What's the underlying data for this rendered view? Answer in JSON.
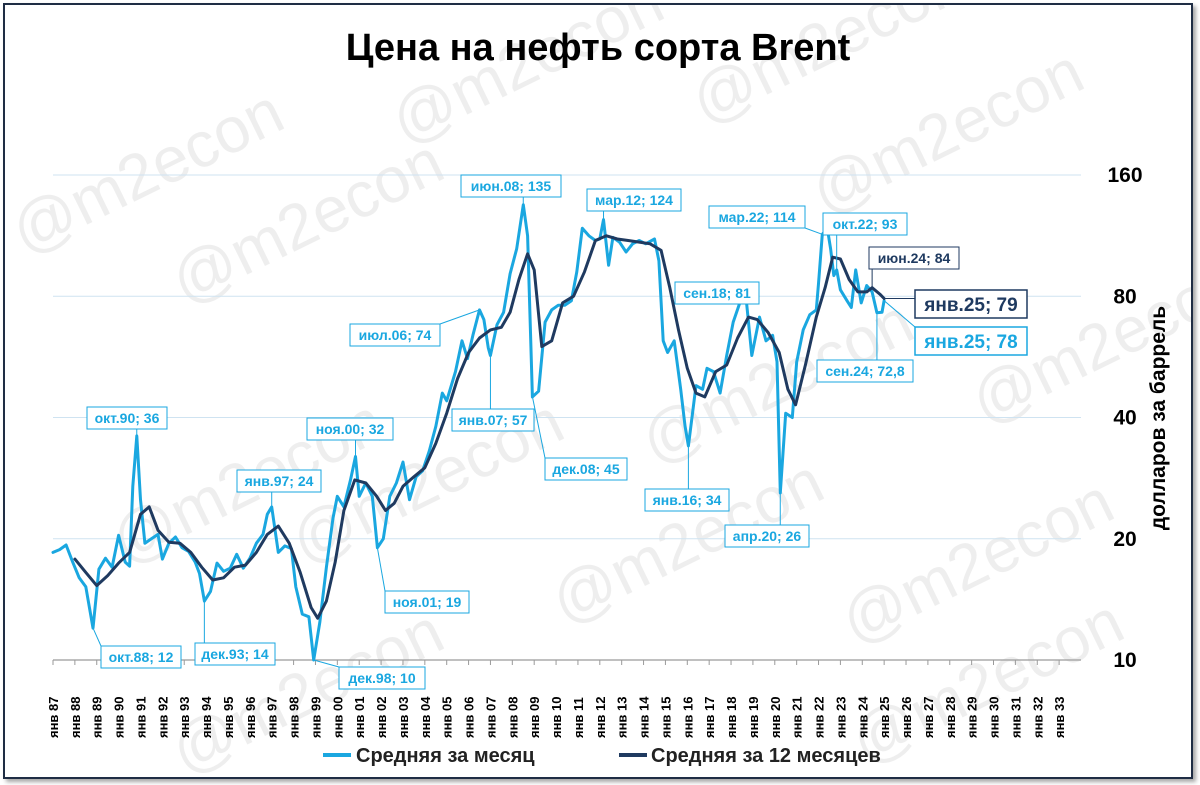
{
  "chart_data": {
    "type": "line",
    "title": "Цена на нефть сорта Brent",
    "ylabel": "долларов за баррель",
    "yscale": "log",
    "ylim": [
      10,
      160
    ],
    "yticks": [
      10,
      20,
      40,
      80,
      160
    ],
    "xlim": [
      1987,
      2034
    ],
    "xticks": [
      "янв 87",
      "янв 88",
      "янв 89",
      "янв 90",
      "янв 91",
      "янв 92",
      "янв 93",
      "янв 94",
      "янв 95",
      "янв 96",
      "янв 97",
      "янв 98",
      "янв 99",
      "янв 00",
      "янв 01",
      "янв 02",
      "янв 03",
      "янв 04",
      "янв 05",
      "янв 06",
      "янв 07",
      "янв 08",
      "янв 09",
      "янв 10",
      "янв 11",
      "янв 12",
      "янв 13",
      "янв 14",
      "янв 15",
      "янв 16",
      "янв 17",
      "янв 18",
      "янв 19",
      "янв 20",
      "янв 21",
      "янв 22",
      "янв 23",
      "янв 24",
      "янв 25",
      "янв 26",
      "янв 27",
      "янв 28",
      "янв 29",
      "янв 30",
      "янв 31",
      "янв 32",
      "янв 33"
    ],
    "legend_position": "bottom",
    "grid": "horizontal",
    "series": [
      {
        "name": "Средняя за месяц",
        "color": "#1aa7e0",
        "points": [
          [
            1987.0,
            18.5
          ],
          [
            1987.3,
            18.8
          ],
          [
            1987.6,
            19.3
          ],
          [
            1987.9,
            17.5
          ],
          [
            1988.2,
            16.0
          ],
          [
            1988.5,
            15.2
          ],
          [
            1988.83,
            12.0
          ],
          [
            1989.1,
            16.8
          ],
          [
            1989.4,
            17.9
          ],
          [
            1989.7,
            17.0
          ],
          [
            1990.0,
            20.4
          ],
          [
            1990.3,
            17.5
          ],
          [
            1990.5,
            17.1
          ],
          [
            1990.65,
            27.0
          ],
          [
            1990.83,
            36.0
          ],
          [
            1991.0,
            25.0
          ],
          [
            1991.2,
            19.5
          ],
          [
            1991.5,
            20.0
          ],
          [
            1991.8,
            20.5
          ],
          [
            1992.0,
            17.8
          ],
          [
            1992.3,
            19.5
          ],
          [
            1992.6,
            20.2
          ],
          [
            1992.9,
            19.0
          ],
          [
            1993.2,
            18.6
          ],
          [
            1993.5,
            17.5
          ],
          [
            1993.7,
            16.4
          ],
          [
            1993.92,
            14.0
          ],
          [
            1994.2,
            14.8
          ],
          [
            1994.5,
            17.4
          ],
          [
            1994.8,
            16.6
          ],
          [
            1995.1,
            16.9
          ],
          [
            1995.4,
            18.3
          ],
          [
            1995.7,
            16.9
          ],
          [
            1996.0,
            17.9
          ],
          [
            1996.3,
            19.5
          ],
          [
            1996.6,
            20.5
          ],
          [
            1996.8,
            23.0
          ],
          [
            1997.0,
            24.0
          ],
          [
            1997.3,
            18.5
          ],
          [
            1997.6,
            19.2
          ],
          [
            1997.9,
            18.9
          ],
          [
            1998.1,
            15.2
          ],
          [
            1998.4,
            13.0
          ],
          [
            1998.7,
            12.8
          ],
          [
            1998.92,
            10.0
          ],
          [
            1999.2,
            12.4
          ],
          [
            1999.5,
            17.0
          ],
          [
            1999.8,
            22.5
          ],
          [
            2000.0,
            25.5
          ],
          [
            2000.3,
            24.0
          ],
          [
            2000.6,
            28.0
          ],
          [
            2000.83,
            32.0
          ],
          [
            2001.0,
            25.5
          ],
          [
            2001.3,
            27.5
          ],
          [
            2001.6,
            25.5
          ],
          [
            2001.83,
            19.0
          ],
          [
            2002.1,
            20.0
          ],
          [
            2002.4,
            25.5
          ],
          [
            2002.7,
            27.5
          ],
          [
            2003.0,
            31.0
          ],
          [
            2003.3,
            25.0
          ],
          [
            2003.6,
            28.5
          ],
          [
            2003.9,
            29.5
          ],
          [
            2004.2,
            33.0
          ],
          [
            2004.5,
            38.0
          ],
          [
            2004.8,
            46.0
          ],
          [
            2005.0,
            44.0
          ],
          [
            2005.4,
            52.0
          ],
          [
            2005.7,
            62.0
          ],
          [
            2005.95,
            56.0
          ],
          [
            2006.2,
            64.0
          ],
          [
            2006.5,
            74.0
          ],
          [
            2006.7,
            70.0
          ],
          [
            2006.9,
            59.5
          ],
          [
            2007.0,
            57.0
          ],
          [
            2007.3,
            68.0
          ],
          [
            2007.6,
            73.0
          ],
          [
            2007.9,
            91.0
          ],
          [
            2008.2,
            105.0
          ],
          [
            2008.5,
            135.0
          ],
          [
            2008.7,
            113.0
          ],
          [
            2008.83,
            65.0
          ],
          [
            2008.92,
            45.0
          ],
          [
            2009.2,
            46.5
          ],
          [
            2009.5,
            69.0
          ],
          [
            2009.8,
            74.0
          ],
          [
            2010.1,
            76.0
          ],
          [
            2010.4,
            76.0
          ],
          [
            2010.7,
            78.0
          ],
          [
            2010.95,
            92.0
          ],
          [
            2011.2,
            118.0
          ],
          [
            2011.5,
            113.0
          ],
          [
            2011.8,
            110.0
          ],
          [
            2012.0,
            111.0
          ],
          [
            2012.17,
            124.0
          ],
          [
            2012.4,
            95.5
          ],
          [
            2012.6,
            112.0
          ],
          [
            2012.9,
            109.0
          ],
          [
            2013.2,
            103.0
          ],
          [
            2013.5,
            108.0
          ],
          [
            2013.8,
            110.0
          ],
          [
            2014.1,
            108.0
          ],
          [
            2014.5,
            111.0
          ],
          [
            2014.7,
            98.0
          ],
          [
            2014.9,
            62.0
          ],
          [
            2015.1,
            58.0
          ],
          [
            2015.4,
            62.0
          ],
          [
            2015.7,
            47.0
          ],
          [
            2015.9,
            38.0
          ],
          [
            2016.05,
            34.0
          ],
          [
            2016.4,
            48.0
          ],
          [
            2016.7,
            47.0
          ],
          [
            2016.9,
            53.0
          ],
          [
            2017.2,
            52.0
          ],
          [
            2017.5,
            46.0
          ],
          [
            2017.8,
            57.0
          ],
          [
            2018.1,
            69.0
          ],
          [
            2018.4,
            77.0
          ],
          [
            2018.67,
            81.0
          ],
          [
            2018.95,
            57.0
          ],
          [
            2019.3,
            71.0
          ],
          [
            2019.6,
            62.0
          ],
          [
            2019.9,
            64.0
          ],
          [
            2020.1,
            55.0
          ],
          [
            2020.25,
            26.0
          ],
          [
            2020.5,
            41.0
          ],
          [
            2020.8,
            40.0
          ],
          [
            2021.0,
            55.0
          ],
          [
            2021.3,
            66.0
          ],
          [
            2021.6,
            72.0
          ],
          [
            2021.9,
            74.0
          ],
          [
            2022.0,
            86.0
          ],
          [
            2022.17,
            114.0
          ],
          [
            2022.4,
            118.0
          ],
          [
            2022.55,
            105.0
          ],
          [
            2022.7,
            90.0
          ],
          [
            2022.83,
            93.0
          ],
          [
            2023.0,
            83.0
          ],
          [
            2023.3,
            78.0
          ],
          [
            2023.5,
            75.0
          ],
          [
            2023.7,
            93.0
          ],
          [
            2023.95,
            77.0
          ],
          [
            2024.2,
            85.0
          ],
          [
            2024.45,
            82.0
          ],
          [
            2024.67,
            72.8
          ],
          [
            2024.9,
            73.0
          ],
          [
            2025.0,
            78.0
          ]
        ]
      },
      {
        "name": "Средняя за 12 месяцев",
        "color": "#1f3a60",
        "points": [
          [
            1988.0,
            17.8
          ],
          [
            1988.5,
            16.5
          ],
          [
            1989.0,
            15.3
          ],
          [
            1989.5,
            16.2
          ],
          [
            1990.0,
            17.4
          ],
          [
            1990.5,
            18.5
          ],
          [
            1991.0,
            23.0
          ],
          [
            1991.4,
            24.0
          ],
          [
            1991.8,
            21.0
          ],
          [
            1992.3,
            19.6
          ],
          [
            1992.8,
            19.5
          ],
          [
            1993.3,
            18.5
          ],
          [
            1993.8,
            17.0
          ],
          [
            1994.3,
            15.8
          ],
          [
            1994.8,
            16.0
          ],
          [
            1995.3,
            17.0
          ],
          [
            1995.8,
            17.2
          ],
          [
            1996.3,
            18.5
          ],
          [
            1996.8,
            20.5
          ],
          [
            1997.3,
            21.5
          ],
          [
            1997.8,
            19.5
          ],
          [
            1998.3,
            16.5
          ],
          [
            1998.8,
            13.5
          ],
          [
            1999.1,
            12.7
          ],
          [
            1999.5,
            14.0
          ],
          [
            1999.9,
            17.5
          ],
          [
            2000.3,
            23.5
          ],
          [
            2000.8,
            28.0
          ],
          [
            2001.3,
            27.5
          ],
          [
            2001.8,
            25.5
          ],
          [
            2002.2,
            23.5
          ],
          [
            2002.6,
            24.5
          ],
          [
            2003.0,
            27.0
          ],
          [
            2003.5,
            28.5
          ],
          [
            2004.0,
            30.0
          ],
          [
            2004.5,
            34.5
          ],
          [
            2005.0,
            41.0
          ],
          [
            2005.5,
            50.0
          ],
          [
            2006.0,
            58.0
          ],
          [
            2006.5,
            63.0
          ],
          [
            2007.0,
            66.0
          ],
          [
            2007.5,
            67.0
          ],
          [
            2007.9,
            73.0
          ],
          [
            2008.3,
            88.0
          ],
          [
            2008.7,
            102.0
          ],
          [
            2009.0,
            93.0
          ],
          [
            2009.35,
            60.0
          ],
          [
            2009.8,
            62.0
          ],
          [
            2010.3,
            77.0
          ],
          [
            2010.8,
            80.0
          ],
          [
            2011.3,
            92.0
          ],
          [
            2011.8,
            110.0
          ],
          [
            2012.3,
            113.0
          ],
          [
            2012.8,
            111.0
          ],
          [
            2013.3,
            110.0
          ],
          [
            2013.8,
            109.0
          ],
          [
            2014.3,
            108.0
          ],
          [
            2014.8,
            104.0
          ],
          [
            2015.2,
            84.0
          ],
          [
            2015.6,
            66.0
          ],
          [
            2016.0,
            53.0
          ],
          [
            2016.4,
            46.0
          ],
          [
            2016.8,
            45.0
          ],
          [
            2017.3,
            52.0
          ],
          [
            2017.8,
            54.0
          ],
          [
            2018.3,
            63.0
          ],
          [
            2018.8,
            71.0
          ],
          [
            2019.2,
            70.0
          ],
          [
            2019.7,
            65.0
          ],
          [
            2020.2,
            58.0
          ],
          [
            2020.6,
            47.0
          ],
          [
            2020.95,
            43.0
          ],
          [
            2021.4,
            54.0
          ],
          [
            2021.9,
            71.0
          ],
          [
            2022.3,
            84.0
          ],
          [
            2022.65,
            100.0
          ],
          [
            2023.0,
            99.0
          ],
          [
            2023.4,
            88.0
          ],
          [
            2023.8,
            82.0
          ],
          [
            2024.2,
            82.0
          ],
          [
            2024.45,
            84.0
          ],
          [
            2024.8,
            81.0
          ],
          [
            2025.0,
            79.0
          ]
        ]
      }
    ],
    "annotations": [
      {
        "text": "окт.90; 36",
        "series": "Средняя за месяц",
        "x": 1990.83,
        "y": 36
      },
      {
        "text": "окт.88; 12",
        "series": "Средняя за месяц",
        "x": 1988.83,
        "y": 12
      },
      {
        "text": "янв.97; 24",
        "series": "Средняя за месяц",
        "x": 1997.0,
        "y": 24
      },
      {
        "text": "дек.93; 14",
        "series": "Средняя за месяц",
        "x": 1993.92,
        "y": 14
      },
      {
        "text": "ноя.00; 32",
        "series": "Средняя за месяц",
        "x": 2000.83,
        "y": 32
      },
      {
        "text": "дек.98; 10",
        "series": "Средняя за месяц",
        "x": 1998.92,
        "y": 10
      },
      {
        "text": "ноя.01; 19",
        "series": "Средняя за месяц",
        "x": 2001.83,
        "y": 19
      },
      {
        "text": "июл.06; 74",
        "series": "Средняя за месяц",
        "x": 2006.5,
        "y": 74
      },
      {
        "text": "янв.07; 57",
        "series": "Средняя за месяц",
        "x": 2007.0,
        "y": 57
      },
      {
        "text": "июн.08; 135",
        "series": "Средняя за месяц",
        "x": 2008.5,
        "y": 135
      },
      {
        "text": "дек.08; 45",
        "series": "Средняя за месяц",
        "x": 2008.92,
        "y": 45
      },
      {
        "text": "мар.12; 124",
        "series": "Средняя за месяц",
        "x": 2012.17,
        "y": 124
      },
      {
        "text": "сен.18; 81",
        "series": "Средняя за месяц",
        "x": 2018.67,
        "y": 81
      },
      {
        "text": "янв.16; 34",
        "series": "Средняя за месяц",
        "x": 2016.05,
        "y": 34
      },
      {
        "text": "апр.20; 26",
        "series": "Средняя за месяц",
        "x": 2020.25,
        "y": 26
      },
      {
        "text": "мар.22; 114",
        "series": "Средняя за месяц",
        "x": 2022.17,
        "y": 114
      },
      {
        "text": "окт.22; 93",
        "series": "Средняя за месяц",
        "x": 2022.83,
        "y": 93
      },
      {
        "text": "сен.24; 72,8",
        "series": "Средняя за месяц",
        "x": 2024.67,
        "y": 72.8
      },
      {
        "text": "июн.24; 84",
        "series": "Средняя за 12 месяцев",
        "x": 2024.45,
        "y": 84
      },
      {
        "text": "янв.25; 79",
        "series": "Средняя за 12 месяцев",
        "x": 2025.0,
        "y": 79,
        "emphasis": true
      },
      {
        "text": "янв.25; 78",
        "series": "Средняя за месяц",
        "x": 2025.0,
        "y": 78,
        "emphasis": true
      }
    ],
    "watermark": "@m2econ"
  }
}
